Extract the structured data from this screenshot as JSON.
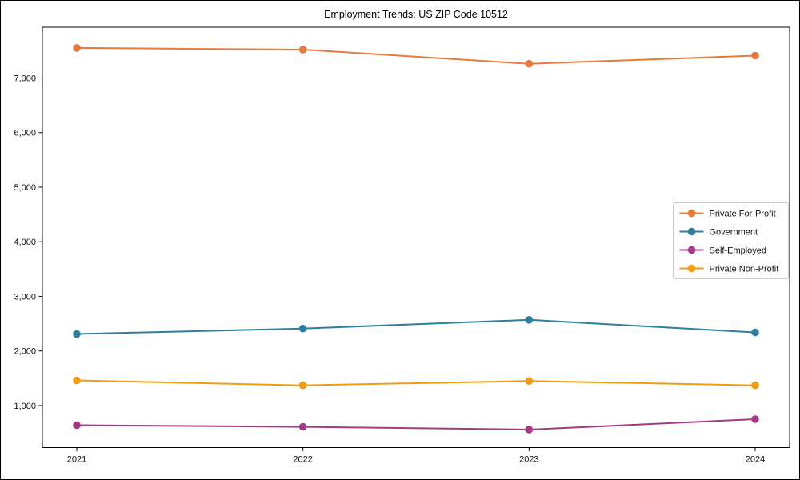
{
  "chart_data": {
    "type": "line",
    "title": "Employment Trends: US ZIP Code 10512",
    "xlabel": "",
    "ylabel": "",
    "x": [
      "2021",
      "2022",
      "2023",
      "2024"
    ],
    "series": [
      {
        "name": "Private For-Profit",
        "color": "#e8793d",
        "values": [
          7550,
          7520,
          7260,
          7410
        ]
      },
      {
        "name": "Government",
        "color": "#2d7f9d",
        "values": [
          2310,
          2410,
          2570,
          2340
        ]
      },
      {
        "name": "Self-Employed",
        "color": "#a23a85",
        "values": [
          640,
          610,
          560,
          750
        ]
      },
      {
        "name": "Private Non-Profit",
        "color": "#f29c0f",
        "values": [
          1460,
          1370,
          1450,
          1370
        ]
      }
    ],
    "yticks": [
      1000,
      2000,
      3000,
      4000,
      5000,
      6000,
      7000
    ],
    "ytick_labels": [
      "1,000",
      "2,000",
      "3,000",
      "4,000",
      "5,000",
      "6,000",
      "7,000"
    ],
    "ylim": [
      230,
      7930
    ],
    "grid": false,
    "legend_position": "center-right",
    "marker": "circle",
    "frame_color": "#000000",
    "legend_border_color": "#cccccc"
  }
}
